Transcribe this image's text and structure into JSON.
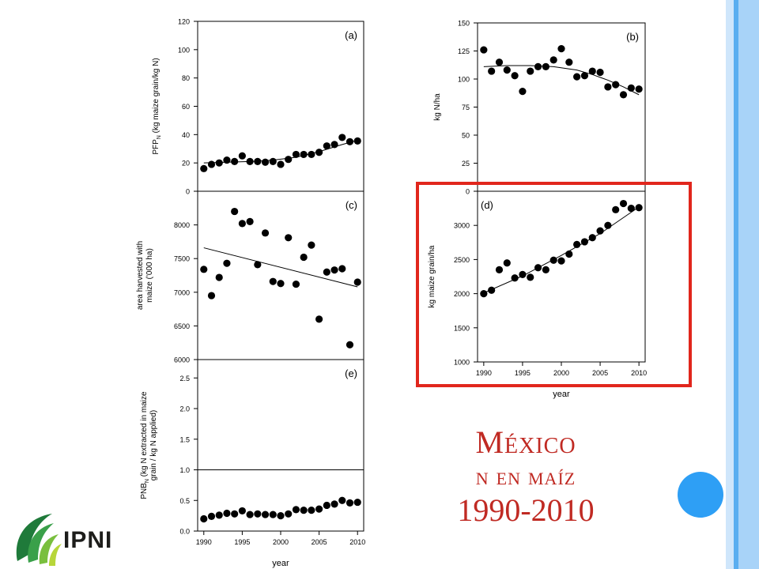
{
  "slide": {
    "title_line1": "México",
    "title_line2": "n en maíz",
    "title_line3": "1990-2010",
    "logo_text": "IPNI",
    "colors": {
      "title": "#c02a23",
      "highlight": "#e1261c",
      "accent_circle": "#2e9ff5",
      "stripes": [
        "#cfe6fb",
        "#5aaef0",
        "#a8d3f8"
      ]
    }
  },
  "chart_data": [
    {
      "id": "a",
      "type": "scatter",
      "panel_label": "(a)",
      "ylabel": "PFP",
      "ylabel_sub": "N",
      "ylabel_tail": " (kg maize grain/kg N)",
      "ylim": [
        0,
        120
      ],
      "yticks": [
        0,
        20,
        40,
        60,
        80,
        100,
        120
      ],
      "xlim": [
        1989.2,
        2010.8
      ],
      "x": [
        1990,
        1991,
        1992,
        1993,
        1994,
        1995,
        1996,
        1997,
        1998,
        1999,
        2000,
        2001,
        2002,
        2003,
        2004,
        2005,
        2006,
        2007,
        2008,
        2009,
        2010
      ],
      "y": [
        16,
        19,
        20,
        22,
        21,
        25,
        21,
        21,
        20.5,
        21,
        19,
        22.5,
        26,
        26,
        26,
        27.5,
        32,
        33,
        38,
        35,
        35.5
      ],
      "trend": {
        "x": [
          1990,
          1993,
          1996,
          1999,
          2002,
          2005,
          2008,
          2010
        ],
        "y": [
          20,
          20.5,
          21,
          22,
          24,
          28,
          33,
          36
        ]
      }
    },
    {
      "id": "b",
      "type": "scatter",
      "panel_label": "(b)",
      "ylabel": "kg N/ha",
      "ylim": [
        0,
        150
      ],
      "yticks": [
        0,
        25,
        50,
        75,
        100,
        125,
        150
      ],
      "xlim": [
        1989.2,
        2010.8
      ],
      "x": [
        1990,
        1991,
        1992,
        1993,
        1994,
        1995,
        1996,
        1997,
        1998,
        1999,
        2000,
        2001,
        2002,
        2003,
        2004,
        2005,
        2006,
        2007,
        2008,
        2009,
        2010
      ],
      "y": [
        126,
        107,
        115,
        108,
        103,
        89,
        107,
        111,
        111,
        117,
        127,
        115,
        102,
        103,
        107,
        106,
        93,
        95,
        86,
        92,
        91
      ],
      "trend": {
        "x": [
          1990,
          1993,
          1996,
          1999,
          2002,
          2004,
          2006,
          2008,
          2010
        ],
        "y": [
          111,
          112,
          112,
          111,
          108,
          104,
          99,
          93,
          86
        ]
      }
    },
    {
      "id": "c",
      "type": "scatter",
      "panel_label": "(c)",
      "ylabel": "area harvested with",
      "ylabel_line2": "maize ('000 ha)",
      "ylim": [
        6000,
        8500
      ],
      "yticks": [
        6000,
        6500,
        7000,
        7500,
        8000
      ],
      "xlim": [
        1989.2,
        2010.8
      ],
      "x": [
        1990,
        1991,
        1992,
        1993,
        1994,
        1995,
        1996,
        1997,
        1998,
        1999,
        2000,
        2001,
        2002,
        2003,
        2004,
        2005,
        2006,
        2007,
        2008,
        2009,
        2010
      ],
      "y": [
        7340,
        6950,
        7220,
        7430,
        8200,
        8020,
        8050,
        7410,
        7880,
        7160,
        7130,
        7810,
        7120,
        7520,
        7700,
        6600,
        7300,
        7330,
        7350,
        6220,
        7150
      ],
      "trend": {
        "x": [
          1990,
          2010
        ],
        "y": [
          7660,
          7080
        ]
      }
    },
    {
      "id": "d",
      "type": "scatter",
      "panel_label": "(d)",
      "ylabel": "kg maize grain/ha",
      "xlabel": "year",
      "ylim": [
        1000,
        3500
      ],
      "yticks": [
        1000,
        1500,
        2000,
        2500,
        3000
      ],
      "xlim": [
        1989.2,
        2010.8
      ],
      "xticks": [
        1990,
        1995,
        2000,
        2005,
        2010
      ],
      "x": [
        1990,
        1991,
        1992,
        1993,
        1994,
        1995,
        1996,
        1997,
        1998,
        1999,
        2000,
        2001,
        2002,
        2003,
        2004,
        2005,
        2006,
        2007,
        2008,
        2009,
        2010
      ],
      "y": [
        2000,
        2050,
        2350,
        2450,
        2230,
        2280,
        2240,
        2380,
        2350,
        2490,
        2480,
        2580,
        2720,
        2760,
        2820,
        2920,
        3000,
        3230,
        3320,
        3250,
        3260
      ],
      "trend": {
        "x": [
          1990,
          1995,
          2000,
          2005,
          2010
        ],
        "y": [
          2010,
          2260,
          2560,
          2880,
          3270
        ]
      }
    },
    {
      "id": "e",
      "type": "scatter",
      "panel_label": "(e)",
      "ylabel": "PNB",
      "ylabel_sub": "N",
      "ylabel_tail": " (kg N extracted in maize",
      "ylabel_line2": "grain / kg N applied)",
      "xlabel": "year",
      "ylim": [
        0,
        2.8
      ],
      "yticks": [
        0.0,
        0.5,
        1.0,
        1.5,
        2.0,
        2.5
      ],
      "ytick_labels": [
        "0.0",
        "0.5",
        "1.0",
        "1.5",
        "2.0",
        "2.5"
      ],
      "reference_line": 1.0,
      "xlim": [
        1989.2,
        2010.8
      ],
      "xticks": [
        1990,
        1995,
        2000,
        2005,
        2010
      ],
      "x": [
        1990,
        1991,
        1992,
        1993,
        1994,
        1995,
        1996,
        1997,
        1998,
        1999,
        2000,
        2001,
        2002,
        2003,
        2004,
        2005,
        2006,
        2007,
        2008,
        2009,
        2010
      ],
      "y": [
        0.2,
        0.24,
        0.26,
        0.29,
        0.28,
        0.33,
        0.27,
        0.28,
        0.27,
        0.27,
        0.25,
        0.28,
        0.35,
        0.34,
        0.34,
        0.36,
        0.42,
        0.44,
        0.5,
        0.46,
        0.47
      ]
    }
  ]
}
